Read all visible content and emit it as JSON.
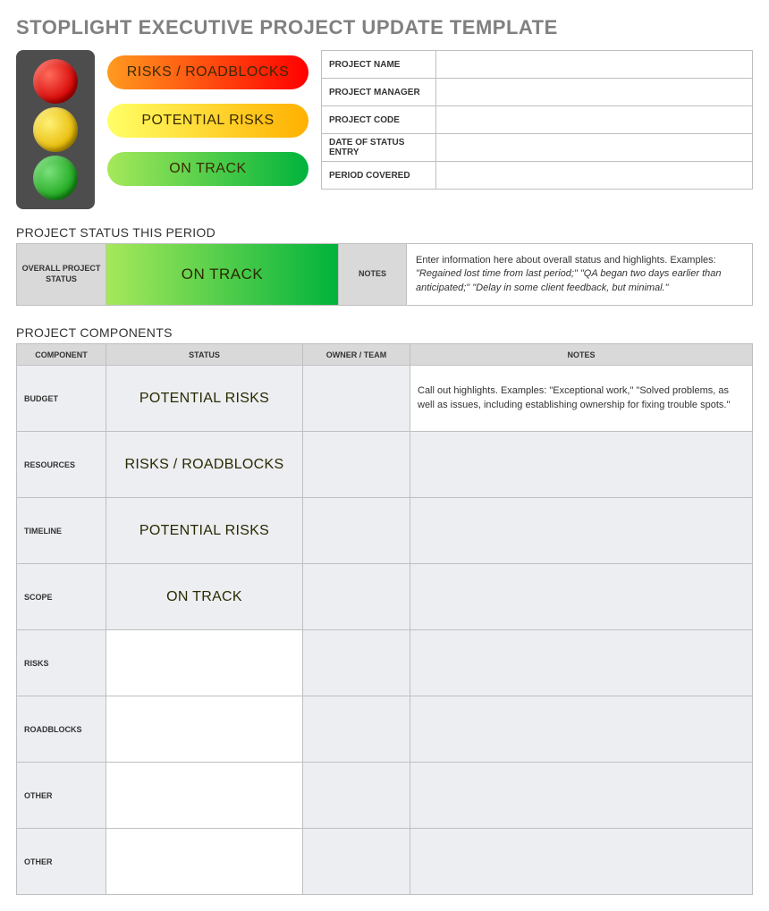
{
  "title": "STOPLIGHT EXECUTIVE PROJECT UPDATE TEMPLATE",
  "colors": {
    "title_text": "#808080",
    "border": "#bfbfbf",
    "header_bg": "#d9d9d9",
    "row_bg": "#eceef2",
    "stoplight_body": "#4d4d4d",
    "red_gradient": [
      "#ff9a1f",
      "#ff0000"
    ],
    "yellow_gradient": [
      "#ffff66",
      "#ffb000"
    ],
    "green_gradient": [
      "#a6e85a",
      "#00b33c"
    ]
  },
  "legend": {
    "red": "RISKS / ROADBLOCKS",
    "yellow": "POTENTIAL RISKS",
    "green": "ON TRACK"
  },
  "info_fields": [
    {
      "label": "PROJECT NAME",
      "value": ""
    },
    {
      "label": "PROJECT MANAGER",
      "value": ""
    },
    {
      "label": "PROJECT CODE",
      "value": ""
    },
    {
      "label": "DATE OF STATUS ENTRY",
      "value": ""
    },
    {
      "label": "PERIOD COVERED",
      "value": ""
    }
  ],
  "status_section": {
    "heading": "PROJECT STATUS THIS PERIOD",
    "overall_label": "OVERALL PROJECT STATUS",
    "overall_status_text": "ON TRACK",
    "overall_status_color": "green",
    "notes_label": "NOTES",
    "notes_pre": "Enter information here about overall status and highlights. Examples: ",
    "notes_examples": "\"Regained lost time from last period;\" \"QA began two days earlier than anticipated;\" \"Delay in some client feedback, but minimal.\""
  },
  "components_section": {
    "heading": "PROJECT COMPONENTS",
    "columns": [
      "COMPONENT",
      "STATUS",
      "OWNER / TEAM",
      "NOTES"
    ],
    "rows": [
      {
        "component": "BUDGET",
        "status_text": "POTENTIAL RISKS",
        "status_color": "yellow",
        "owner": "",
        "notes": "Call out highlights. Examples: \"Exceptional work,\" \"Solved problems, as well as issues, including establishing ownership for fixing trouble spots.\""
      },
      {
        "component": "RESOURCES",
        "status_text": "RISKS / ROADBLOCKS",
        "status_color": "red",
        "owner": "",
        "notes": ""
      },
      {
        "component": "TIMELINE",
        "status_text": "POTENTIAL RISKS",
        "status_color": "yellow",
        "owner": "",
        "notes": ""
      },
      {
        "component": "SCOPE",
        "status_text": "ON TRACK",
        "status_color": "green",
        "owner": "",
        "notes": ""
      },
      {
        "component": "RISKS",
        "status_text": "",
        "status_color": "",
        "owner": "",
        "notes": ""
      },
      {
        "component": "ROADBLOCKS",
        "status_text": "",
        "status_color": "",
        "owner": "",
        "notes": ""
      },
      {
        "component": "OTHER",
        "status_text": "",
        "status_color": "",
        "owner": "",
        "notes": ""
      },
      {
        "component": "OTHER",
        "status_text": "",
        "status_color": "",
        "owner": "",
        "notes": ""
      }
    ]
  }
}
